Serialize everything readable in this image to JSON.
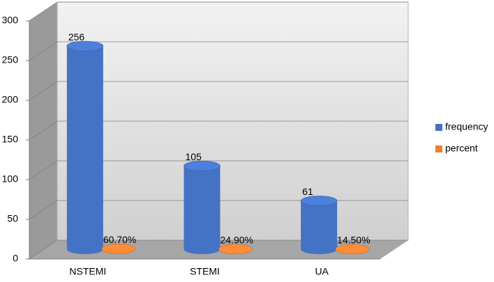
{
  "chart_data": {
    "type": "bar3d",
    "categories": [
      "NSTEMI",
      "STEMI",
      "UA"
    ],
    "series": [
      {
        "name": "frequency",
        "color": "#4472c4",
        "values": [
          256,
          105,
          61
        ]
      },
      {
        "name": "percent",
        "color": "#ed7d31",
        "values": [
          0.607,
          0.249,
          0.145
        ],
        "value_labels": [
          "60.70%",
          "24.90%",
          "14.50%"
        ]
      }
    ],
    "ylim": [
      0,
      300
    ],
    "yticks": [
      0,
      50,
      100,
      150,
      200,
      250,
      300
    ],
    "grid": true,
    "legend": "right"
  }
}
